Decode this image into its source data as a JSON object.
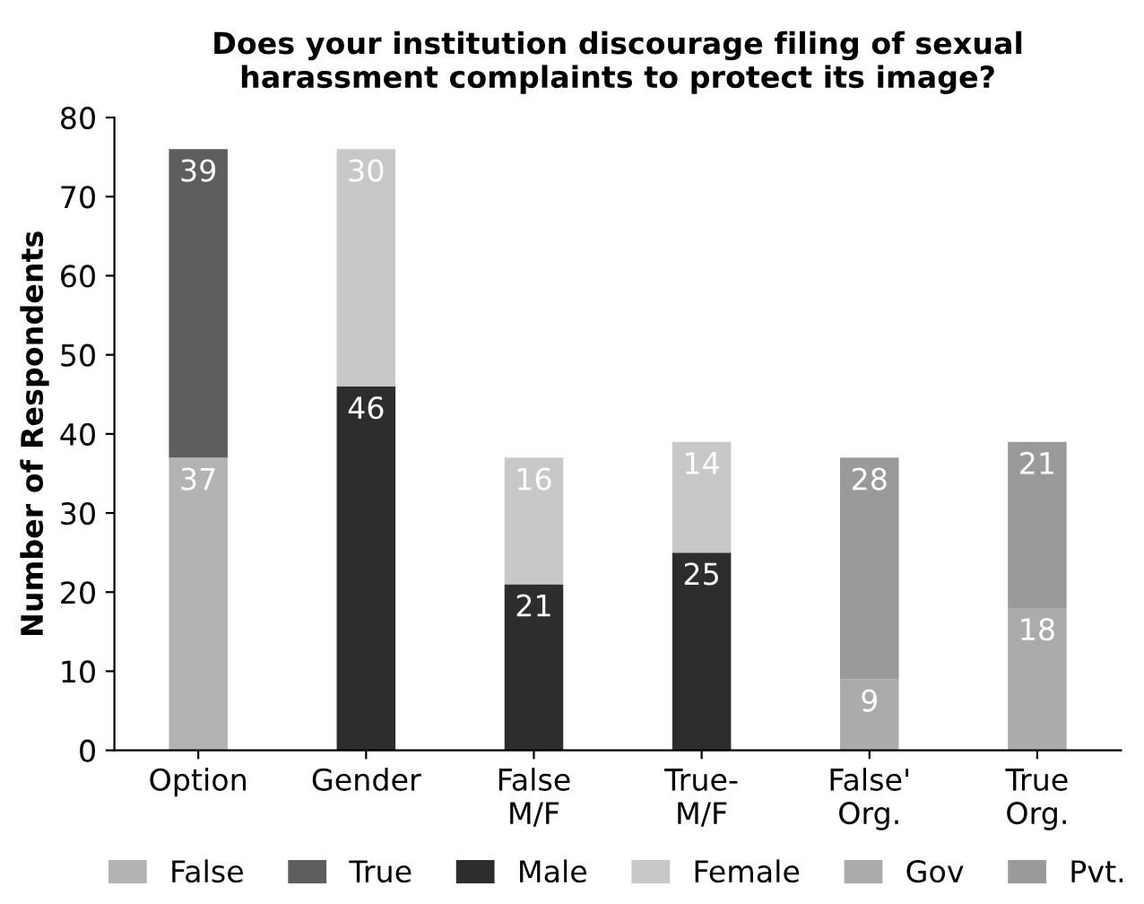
{
  "chart_data": {
    "type": "bar",
    "stacked": true,
    "title": "Does your institution discourage filing of sexual\nharassment complaints to protect its image?",
    "ylabel": "Number of Respondents",
    "categories": [
      "Option",
      "Gender",
      "False\nM/F",
      "True-\nM/F",
      "False'\nOrg.",
      "True\nOrg."
    ],
    "series": [
      {
        "name": "False",
        "color": "#b3b3b3",
        "values": [
          37,
          null,
          null,
          null,
          null,
          null
        ]
      },
      {
        "name": "True",
        "color": "#5e5e5e",
        "values": [
          39,
          null,
          null,
          null,
          null,
          null
        ]
      },
      {
        "name": "Male",
        "color": "#2d2d2d",
        "values": [
          null,
          46,
          21,
          25,
          null,
          null
        ]
      },
      {
        "name": "Female",
        "color": "#c8c8c8",
        "values": [
          null,
          30,
          16,
          14,
          null,
          null
        ]
      },
      {
        "name": "Gov",
        "color": "#ababab",
        "values": [
          null,
          null,
          null,
          null,
          9,
          18
        ]
      },
      {
        "name": "Pvt.",
        "color": "#9a9a9a",
        "values": [
          null,
          null,
          null,
          null,
          28,
          21
        ]
      }
    ],
    "ylim": [
      0,
      80
    ],
    "yticks": [
      0,
      10,
      20,
      30,
      40,
      50,
      60,
      70,
      80
    ],
    "data_labels": true,
    "grid": false,
    "legend": "bottom"
  }
}
